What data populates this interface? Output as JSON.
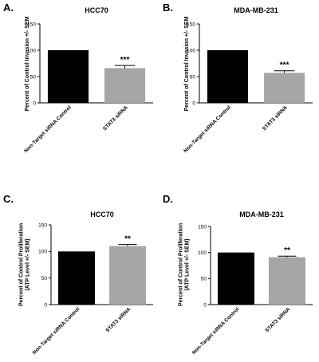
{
  "chart_data": [
    {
      "panel": "A.",
      "type": "bar",
      "title": "HCC70",
      "ylabel": "Percent of Control Invasion +/- SEM",
      "categories": [
        "Non-Target siRNA Control",
        "STAT3 siRNA"
      ],
      "values": [
        100,
        66
      ],
      "errors": [
        0,
        5
      ],
      "annotations": [
        "",
        "***"
      ],
      "colors": [
        "#000000",
        "#a6a6a6"
      ],
      "ylim": [
        0,
        150
      ],
      "yticks": [
        0,
        50,
        100,
        150
      ]
    },
    {
      "panel": "B.",
      "type": "bar",
      "title": "MDA-MB-231",
      "ylabel": "Percent of Control Invasion +/- SEM",
      "categories": [
        "Non-Target siRNA Control",
        "STAT3 siRNA"
      ],
      "values": [
        100,
        57
      ],
      "errors": [
        0,
        4
      ],
      "annotations": [
        "",
        "***"
      ],
      "colors": [
        "#000000",
        "#a6a6a6"
      ],
      "ylim": [
        0,
        150
      ],
      "yticks": [
        0,
        50,
        100,
        150
      ]
    },
    {
      "panel": "C.",
      "type": "bar",
      "title": "HCC70",
      "ylabel": "Percent of Control Proliferation (ATP Level +/- SEM)",
      "categories": [
        "Non-Target siRNA Control",
        "STAT3 siRNA"
      ],
      "values": [
        100,
        110
      ],
      "errors": [
        0,
        3
      ],
      "annotations": [
        "",
        "**"
      ],
      "colors": [
        "#000000",
        "#a6a6a6"
      ],
      "ylim": [
        0,
        150
      ],
      "yticks": [
        0,
        50,
        100,
        150
      ]
    },
    {
      "panel": "D.",
      "type": "bar",
      "title": "MDA-MB-231",
      "ylabel": "Percent of Control Proliferation (ATP Level +/- SEM)",
      "categories": [
        "Non-Target siRNA Control",
        "STAT3 siRNA"
      ],
      "values": [
        100,
        91
      ],
      "errors": [
        0,
        2
      ],
      "annotations": [
        "",
        "**"
      ],
      "colors": [
        "#000000",
        "#a6a6a6"
      ],
      "ylim": [
        0,
        150
      ],
      "yticks": [
        0,
        50,
        100,
        150
      ]
    }
  ]
}
